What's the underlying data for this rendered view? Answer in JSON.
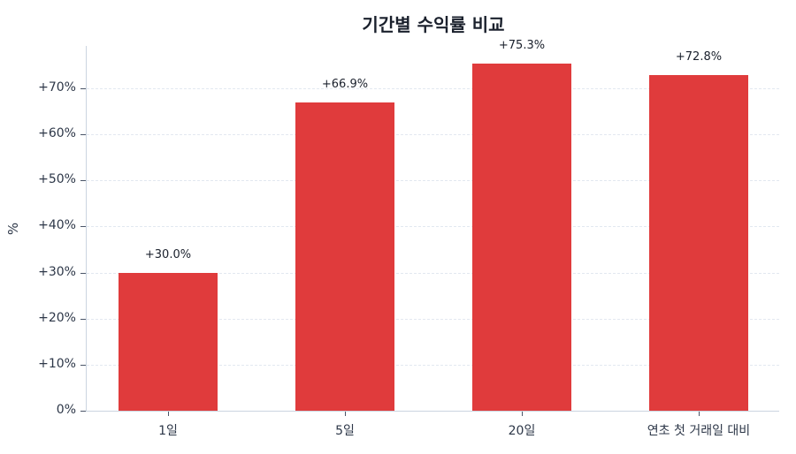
{
  "chart_data": {
    "type": "bar",
    "title": "기간별 수익률 비교",
    "xlabel": "",
    "ylabel": "%",
    "categories": [
      "1일",
      "5일",
      "20일",
      "연초 첫 거래일 대비"
    ],
    "values": [
      30.0,
      66.9,
      75.3,
      72.8
    ],
    "value_labels": [
      "+30.0%",
      "+66.9%",
      "+75.3%",
      "+72.8%"
    ],
    "ylim": [
      0,
      79
    ],
    "yticks": [
      0,
      10,
      20,
      30,
      40,
      50,
      60,
      70
    ],
    "ytick_labels": [
      "0%",
      "+10%",
      "+20%",
      "+30%",
      "+40%",
      "+50%",
      "+60%",
      "+70%"
    ],
    "grid": "horizontal dashed",
    "legend": null,
    "bar_color": "#e03b3c"
  }
}
